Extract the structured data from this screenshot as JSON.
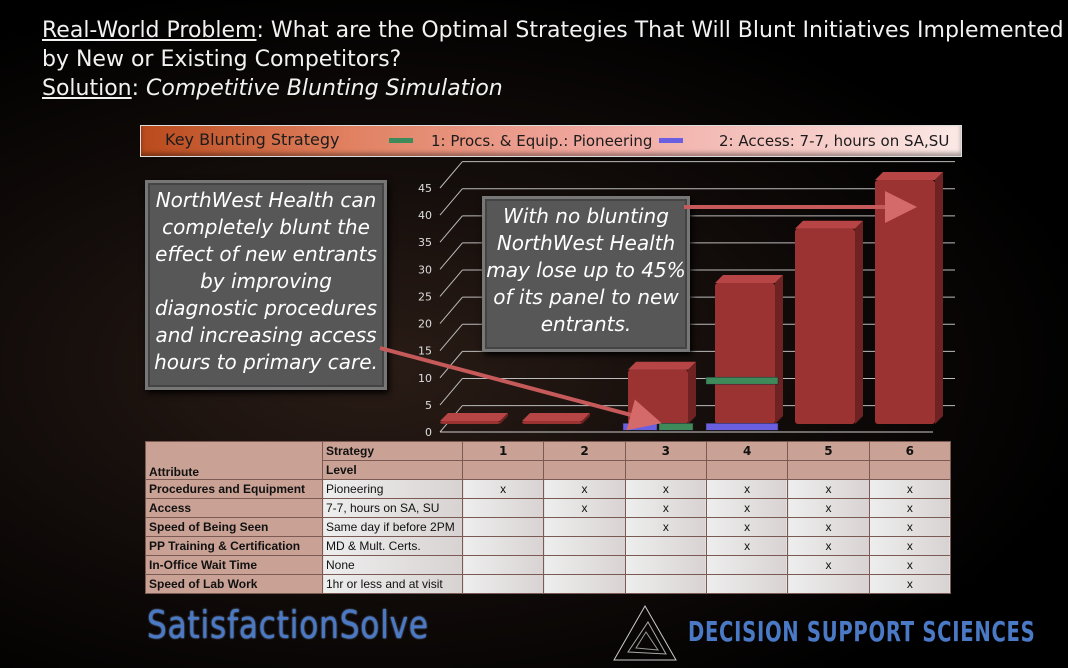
{
  "title": {
    "problem_label": "Real-World Problem",
    "problem_text": ": What are the Optimal Strategies That Will Blunt Initiatives Implemented by New or Existing Competitors?",
    "solution_label": "Solution",
    "solution_text": "Competitive Blunting Simulation"
  },
  "callouts": {
    "left": "NorthWest Health can completely blunt the effect of new entrants by improving diagnostic procedures and increasing access hours to primary care.",
    "right": "With no blunting NorthWest Health may lose up to 45% of its panel to new entrants."
  },
  "chart_data": {
    "type": "bar",
    "style": "3d-column",
    "categories": [
      "1",
      "2",
      "3",
      "4",
      "5",
      "6"
    ],
    "legend_title": "Key Blunting Strategy",
    "legend_position": "top",
    "series": [
      {
        "name": "",
        "color": "#9b3333",
        "values": [
          0.5,
          0.5,
          10,
          26,
          36,
          45
        ]
      },
      {
        "name": "1: Procs. & Equip.: Pioneering",
        "color": "#3f8a5a",
        "values": [
          null,
          null,
          0.5,
          9,
          null,
          null
        ]
      },
      {
        "name": "2: Access: 7-7, hours on SA,SU",
        "color": "#6a5fe0",
        "values": [
          null,
          null,
          0.5,
          0.5,
          null,
          null
        ]
      }
    ],
    "yticks": [
      0,
      5,
      10,
      15,
      20,
      25,
      30,
      35,
      40,
      45
    ],
    "ylim": [
      0,
      45
    ],
    "grid": true
  },
  "table": {
    "header": {
      "attribute": "Attribute",
      "strategy": "Strategy",
      "level": "Level",
      "columns": [
        "1",
        "2",
        "3",
        "4",
        "5",
        "6"
      ]
    },
    "rows": [
      {
        "attribute": "Procedures and Equipment",
        "level": "Pioneering",
        "marks": [
          "x",
          "x",
          "x",
          "x",
          "x",
          "x"
        ]
      },
      {
        "attribute": "Access",
        "level": "7-7, hours on SA, SU",
        "marks": [
          "",
          "x",
          "x",
          "x",
          "x",
          "x"
        ]
      },
      {
        "attribute": "Speed of Being Seen",
        "level": "Same day if before 2PM",
        "marks": [
          "",
          "",
          "x",
          "x",
          "x",
          "x"
        ]
      },
      {
        "attribute": "PP Training & Certification",
        "level": "MD & Mult. Certs.",
        "marks": [
          "",
          "",
          "",
          "x",
          "x",
          "x"
        ]
      },
      {
        "attribute": "In-Office Wait Time",
        "level": "None",
        "marks": [
          "",
          "",
          "",
          "",
          "x",
          "x"
        ]
      },
      {
        "attribute": "Speed of Lab Work",
        "level": "1hr or less and at visit",
        "marks": [
          "",
          "",
          "",
          "",
          "",
          "x"
        ]
      }
    ]
  },
  "footer": {
    "left_logo": "SatisfactionSolve",
    "right_logo": "DECISION SUPPORT SCIENCES"
  }
}
